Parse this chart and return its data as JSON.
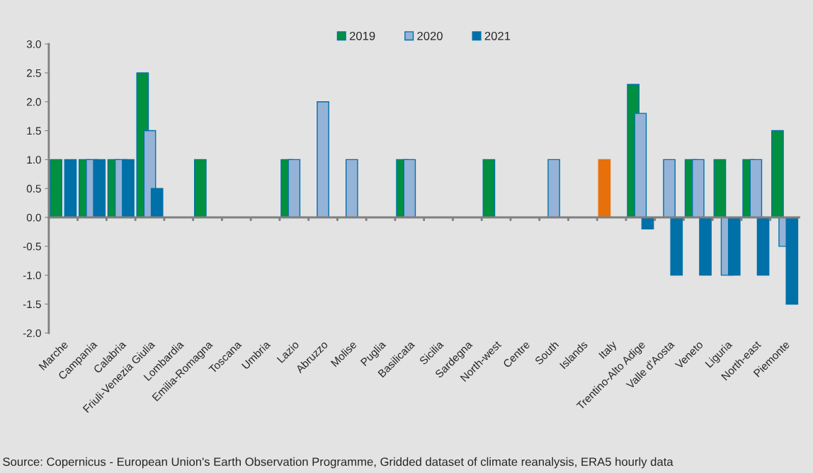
{
  "chart_data": {
    "type": "bar",
    "categories": [
      "Marche",
      "Campania",
      "Calabria",
      "Friuli-Venezia Giulia",
      "Lombardia",
      "Emilia-Romagna",
      "Toscana",
      "Umbria",
      "Lazio",
      "Abruzzo",
      "Molise",
      "Puglia",
      "Basilicata",
      "Sicilia",
      "Sardegna",
      "North-west",
      "Centre",
      "South",
      "Islands",
      "Italy",
      "Trentino-Alto Adige",
      "Valle d'Aosta",
      "Veneto",
      "Liguria",
      "North-east",
      "Piemonte"
    ],
    "series": [
      {
        "name": "2019",
        "color": "#009040",
        "colors": [
          "#009040",
          "#009040",
          "#009040",
          "#009040",
          "#009040",
          "#009040",
          "#009040",
          "#009040",
          "#009040",
          "#009040",
          "#009040",
          "#009040",
          "#009040",
          "#009040",
          "#009040",
          "#009040",
          "#009040",
          "#009040",
          "#009040",
          "#e8700a",
          "#009040",
          "#009040",
          "#009040",
          "#009040",
          "#009040",
          "#009040"
        ],
        "values": [
          1.0,
          1.0,
          1.0,
          2.5,
          null,
          1.0,
          null,
          null,
          1.0,
          null,
          null,
          null,
          1.0,
          null,
          null,
          1.0,
          null,
          null,
          null,
          1.0,
          2.3,
          null,
          1.0,
          1.0,
          1.0,
          1.5
        ]
      },
      {
        "name": "2020",
        "color": "#95b3d7",
        "values": [
          null,
          1.0,
          1.0,
          1.5,
          null,
          null,
          null,
          null,
          1.0,
          2.0,
          1.0,
          null,
          1.0,
          null,
          null,
          null,
          null,
          1.0,
          null,
          null,
          1.8,
          1.0,
          1.0,
          -1.0,
          1.0,
          -0.5
        ]
      },
      {
        "name": "2021",
        "color": "#0070a8",
        "values": [
          1.0,
          1.0,
          1.0,
          0.5,
          null,
          null,
          null,
          null,
          null,
          null,
          null,
          null,
          null,
          null,
          null,
          null,
          null,
          null,
          null,
          null,
          -0.2,
          -1.0,
          -1.0,
          -1.0,
          -1.0,
          -1.5
        ]
      }
    ],
    "ylim": [
      -2.0,
      3.0
    ],
    "yticks": [
      {
        "value": -2,
        "label": "-2.0"
      },
      {
        "value": -1.5,
        "label": "-1.5"
      },
      {
        "value": -1,
        "label": "-1.0"
      },
      {
        "value": -0.5,
        "label": "-0.5"
      },
      {
        "value": 0,
        "label": "0.0"
      },
      {
        "value": 0.5,
        "label": "0.5"
      },
      {
        "value": 1,
        "label": "1.0"
      },
      {
        "value": 1.5,
        "label": "1.5"
      },
      {
        "value": 2,
        "label": "2.0"
      },
      {
        "value": 2.5,
        "label": "2.5"
      },
      {
        "value": 3,
        "label": "3.0"
      }
    ],
    "legend": "top",
    "annotations": [
      "Source: Copernicus - European Union's Earth Observation Programme, Gridded dataset of climate reanalysis, ERA5 hourly data"
    ]
  }
}
